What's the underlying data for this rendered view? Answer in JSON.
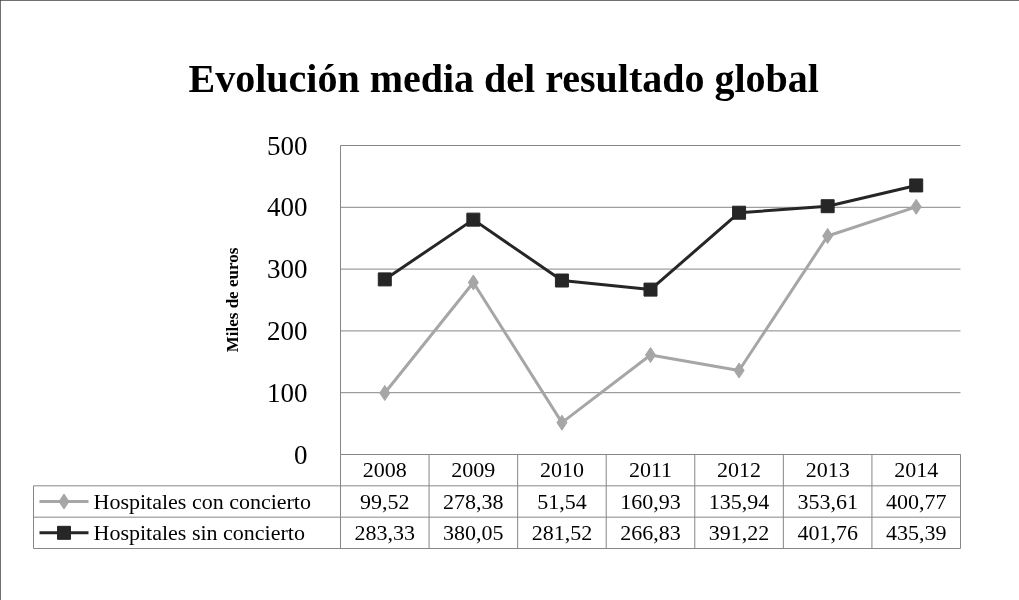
{
  "chart_data": {
    "type": "line",
    "title": "Evolución media del resultado global",
    "ylabel": "Miles de euros",
    "categories": [
      "2008",
      "2009",
      "2010",
      "2011",
      "2012",
      "2013",
      "2014"
    ],
    "series": [
      {
        "name": "Hospitales con concierto",
        "color": "#a6a6a6",
        "marker": "diamond",
        "values": [
          99.52,
          278.38,
          51.54,
          160.93,
          135.94,
          353.61,
          400.77
        ],
        "value_labels": [
          "99,52",
          "278,38",
          "51,54",
          "160,93",
          "135,94",
          "353,61",
          "400,77"
        ]
      },
      {
        "name": "Hospitales sin concierto",
        "color": "#262626",
        "marker": "square",
        "values": [
          283.33,
          380.05,
          281.52,
          266.83,
          391.22,
          401.76,
          435.39
        ],
        "value_labels": [
          "283,33",
          "380,05",
          "281,52",
          "266,83",
          "391,22",
          "401,76",
          "435,39"
        ]
      }
    ],
    "ylim": [
      0,
      500
    ],
    "yticks": [
      0,
      100,
      200,
      300,
      400,
      500
    ],
    "grid": "y",
    "legend": "bottom",
    "line_style": "solid"
  }
}
